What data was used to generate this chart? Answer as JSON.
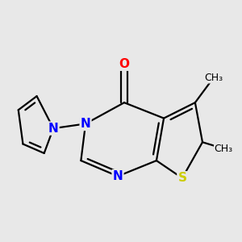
{
  "background_color": "#e8e8e8",
  "atom_colors": {
    "C": "#000000",
    "N": "#0000ff",
    "O": "#ff0000",
    "S": "#cccc00"
  },
  "figsize": [
    3.0,
    3.0
  ],
  "dpi": 100,
  "bond_lw": 1.6,
  "font_size": 11,
  "methyl_font_size": 9
}
